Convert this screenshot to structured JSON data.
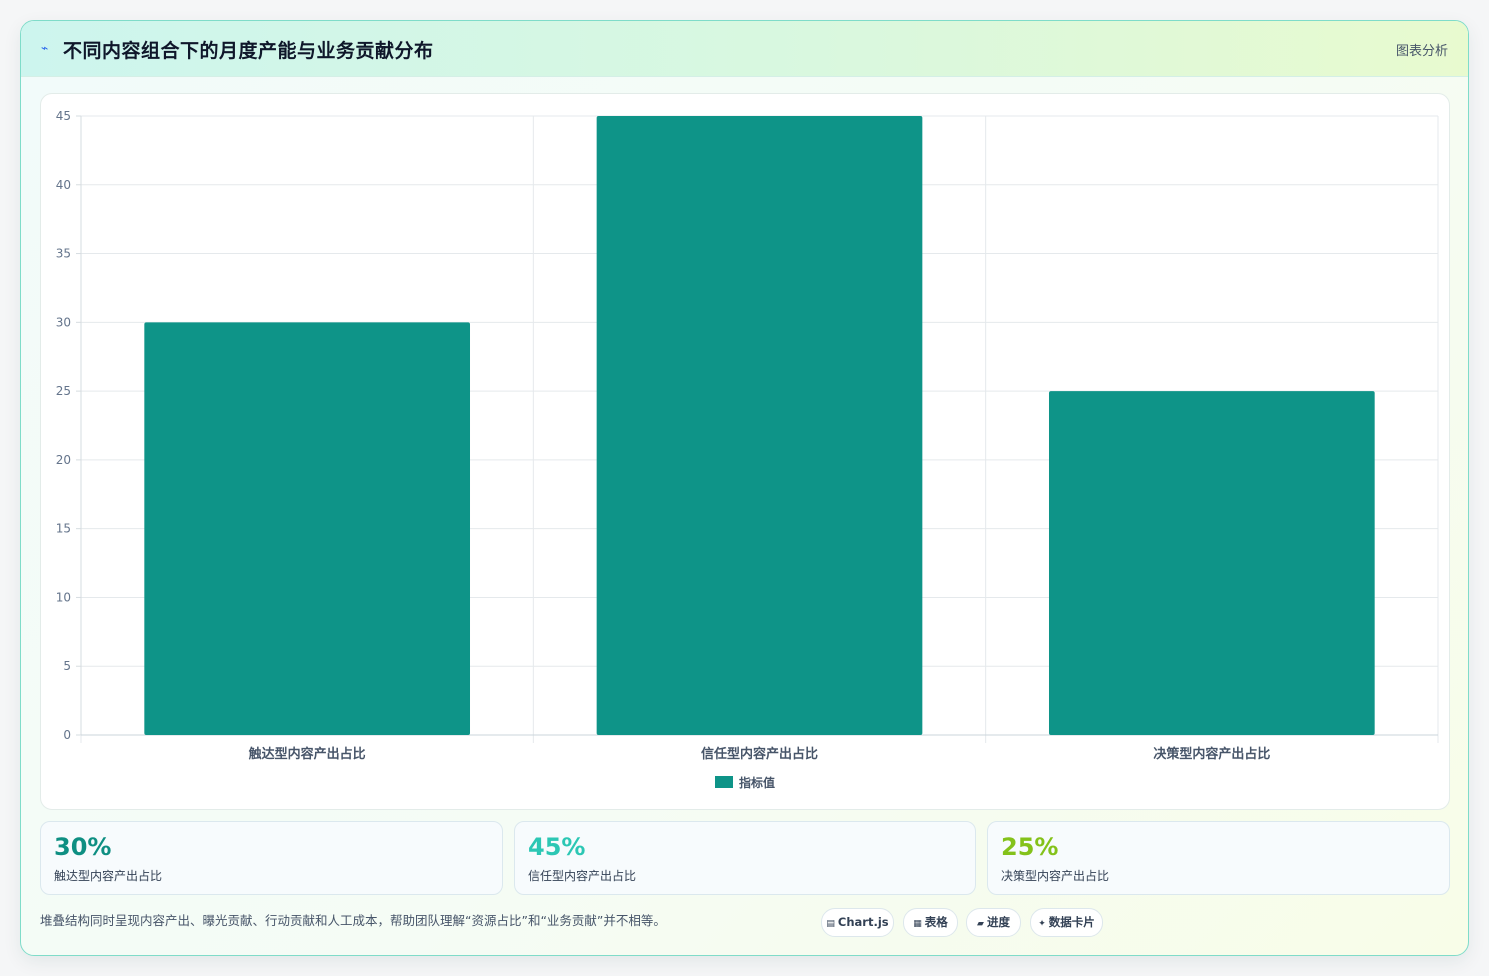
{
  "header": {
    "title": "不同内容组合下的月度产能与业务贡献分布",
    "tag": "图表分析",
    "icon": "trend-icon"
  },
  "chart_data": {
    "type": "bar",
    "categories": [
      "触达型内容产出占比",
      "信任型内容产出占比",
      "决策型内容产出占比"
    ],
    "series": [
      {
        "name": "指标值",
        "values": [
          30,
          45,
          25
        ],
        "color": "#0e9488"
      }
    ],
    "ylim": [
      0,
      45
    ],
    "yticks": [
      0,
      5,
      10,
      15,
      20,
      25,
      30,
      35,
      40,
      45
    ],
    "grid": true,
    "legend": "bottom"
  },
  "metrics": [
    {
      "value": "30%",
      "label": "触达型内容产出占比",
      "color": "#0e8f82"
    },
    {
      "value": "45%",
      "label": "信任型内容产出占比",
      "color": "#2cc7b4"
    },
    {
      "value": "25%",
      "label": "决策型内容产出占比",
      "color": "#84c21a"
    }
  ],
  "footnote": "堆叠结构同时呈现内容产出、曝光贡献、行动贡献和人工成本，帮助团队理解“资源占比”和“业务贡献”并不相等。",
  "chips": [
    {
      "icon": "▤",
      "label": "Chart.js",
      "icon_name": "chart-icon"
    },
    {
      "icon": "▦",
      "label": "表格",
      "icon_name": "table-icon"
    },
    {
      "icon": "▰",
      "label": "进度",
      "icon_name": "progress-icon"
    },
    {
      "icon": "✦",
      "label": "数据卡片",
      "icon_name": "card-icon"
    }
  ]
}
